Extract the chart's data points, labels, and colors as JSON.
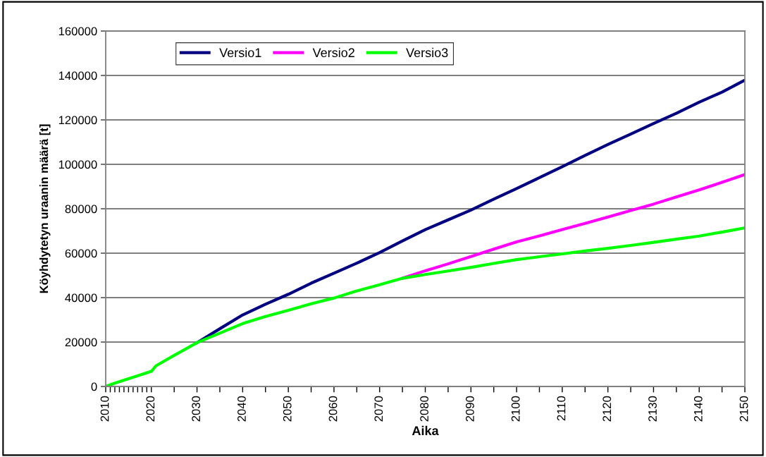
{
  "chart_data": {
    "type": "line",
    "xlabel": "Aika",
    "ylabel": "Köyhdytetyn uraanin määrä [t]",
    "xlim": [
      2010,
      2150
    ],
    "ylim": [
      0,
      160000
    ],
    "xticks": [
      2010,
      {
        "value": 2011,
        "label": null
      },
      {
        "value": 2012,
        "label": null
      },
      {
        "value": 2013,
        "label": null
      },
      {
        "value": 2014,
        "label": null
      },
      {
        "value": 2015,
        "label": null
      },
      {
        "value": 2016,
        "label": null
      },
      {
        "value": 2017,
        "label": null
      },
      {
        "value": 2018,
        "label": null
      },
      {
        "value": 2019,
        "label": null
      },
      2020,
      {
        "value": 2025,
        "label": null
      },
      2030,
      {
        "value": 2035,
        "label": null
      },
      2040,
      {
        "value": 2045,
        "label": null
      },
      2050,
      {
        "value": 2055,
        "label": null
      },
      2060,
      {
        "value": 2065,
        "label": null
      },
      2070,
      {
        "value": 2075,
        "label": null
      },
      2080,
      {
        "value": 2085,
        "label": null
      },
      2090,
      {
        "value": 2095,
        "label": null
      },
      2100,
      {
        "value": 2105,
        "label": null
      },
      2110,
      {
        "value": 2115,
        "label": null
      },
      2120,
      {
        "value": 2125,
        "label": null
      },
      2130,
      {
        "value": 2135,
        "label": null
      },
      2140,
      {
        "value": 2145,
        "label": null
      },
      2150
    ],
    "yticks": [
      0,
      20000,
      40000,
      60000,
      80000,
      100000,
      120000,
      140000,
      160000
    ],
    "grid": "y",
    "legend": "top left",
    "line_style": "solid",
    "marker": "none",
    "x": [
      2010,
      2012,
      2015,
      2018,
      2020,
      2021,
      2025,
      2030,
      2035,
      2040,
      2045,
      2050,
      2055,
      2060,
      2065,
      2070,
      2075,
      2080,
      2085,
      2090,
      2095,
      2100,
      2105,
      2110,
      2115,
      2120,
      2125,
      2130,
      2135,
      2140,
      2145,
      2150
    ],
    "series": [
      {
        "name": "Versio1",
        "color": "#000080",
        "values": [
          null,
          null,
          null,
          null,
          null,
          null,
          null,
          19700,
          26000,
          32200,
          37000,
          41500,
          46500,
          51000,
          55500,
          60300,
          65500,
          70600,
          75000,
          79400,
          84300,
          89100,
          94000,
          98900,
          104000,
          108900,
          113600,
          118400,
          123000,
          128000,
          132500,
          137900
        ]
      },
      {
        "name": "Versio2",
        "color": "#ff00ff",
        "values": [
          null,
          null,
          null,
          null,
          null,
          null,
          null,
          null,
          null,
          null,
          null,
          null,
          null,
          null,
          null,
          null,
          48700,
          52100,
          55200,
          58500,
          61800,
          65100,
          67800,
          70600,
          73400,
          76300,
          79200,
          82100,
          85300,
          88500,
          91900,
          95400
        ]
      },
      {
        "name": "Versio3",
        "color": "#00ff00",
        "values": [
          0,
          1500,
          3500,
          5500,
          6800,
          9300,
          14000,
          19700,
          24000,
          28300,
          31500,
          34300,
          37200,
          39800,
          43000,
          45800,
          48700,
          50400,
          52000,
          53600,
          55400,
          57100,
          58400,
          59700,
          61000,
          62200,
          63500,
          64900,
          66300,
          67700,
          69500,
          71400
        ]
      }
    ]
  }
}
